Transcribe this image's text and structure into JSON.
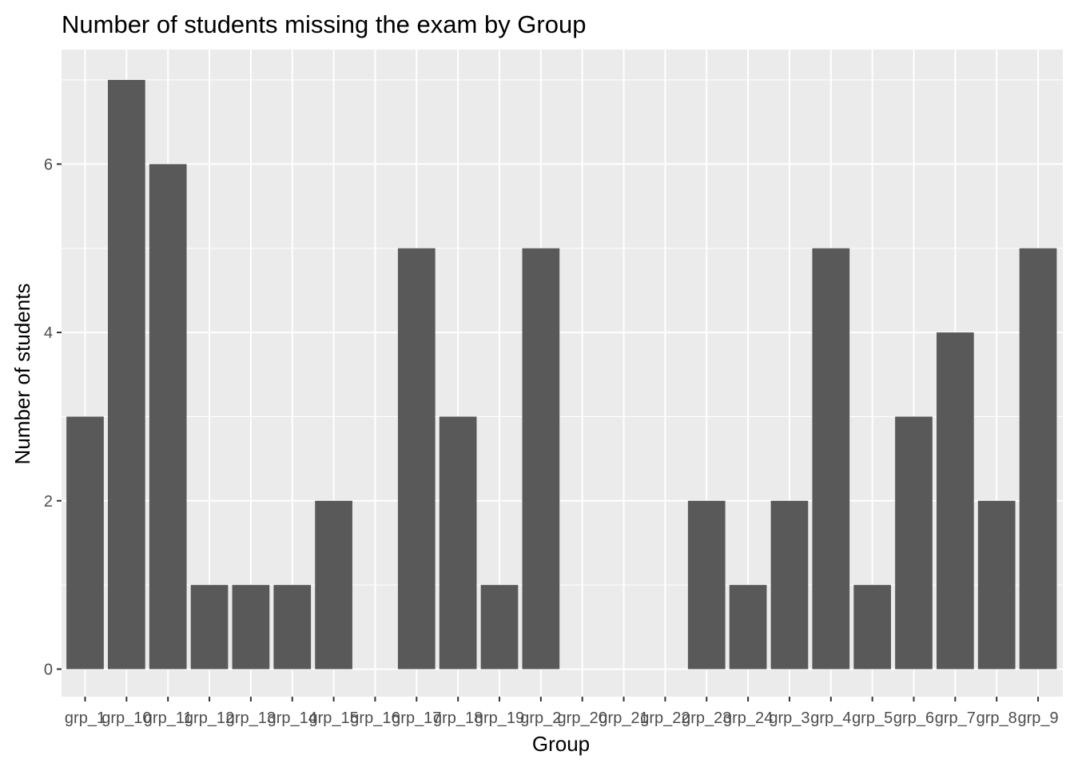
{
  "chart_data": {
    "type": "bar",
    "title": "Number of students missing the exam by Group",
    "xlabel": "Group",
    "ylabel": "Number of students",
    "categories": [
      "grp_1",
      "grp_10",
      "grp_11",
      "grp_12",
      "grp_13",
      "grp_14",
      "grp_15",
      "grp_16",
      "grp_17",
      "grp_18",
      "grp_19",
      "grp_2",
      "grp_20",
      "grp_21",
      "grp_22",
      "grp_23",
      "grp_24",
      "grp_3",
      "grp_4",
      "grp_5",
      "grp_6",
      "grp_7",
      "grp_8",
      "grp_9"
    ],
    "values": [
      3,
      7,
      6,
      1,
      1,
      1,
      2,
      0,
      5,
      3,
      1,
      5,
      0,
      0,
      0,
      2,
      1,
      2,
      5,
      1,
      3,
      4,
      2,
      5
    ],
    "ylim": [
      0,
      7
    ],
    "yticks": [
      0,
      2,
      4,
      6
    ],
    "grid": true,
    "colors": {
      "bar": "#595959",
      "panel": "#ebebeb",
      "grid": "#ffffff",
      "tick_text": "#4d4d4d",
      "tick_mark": "#333333"
    }
  }
}
